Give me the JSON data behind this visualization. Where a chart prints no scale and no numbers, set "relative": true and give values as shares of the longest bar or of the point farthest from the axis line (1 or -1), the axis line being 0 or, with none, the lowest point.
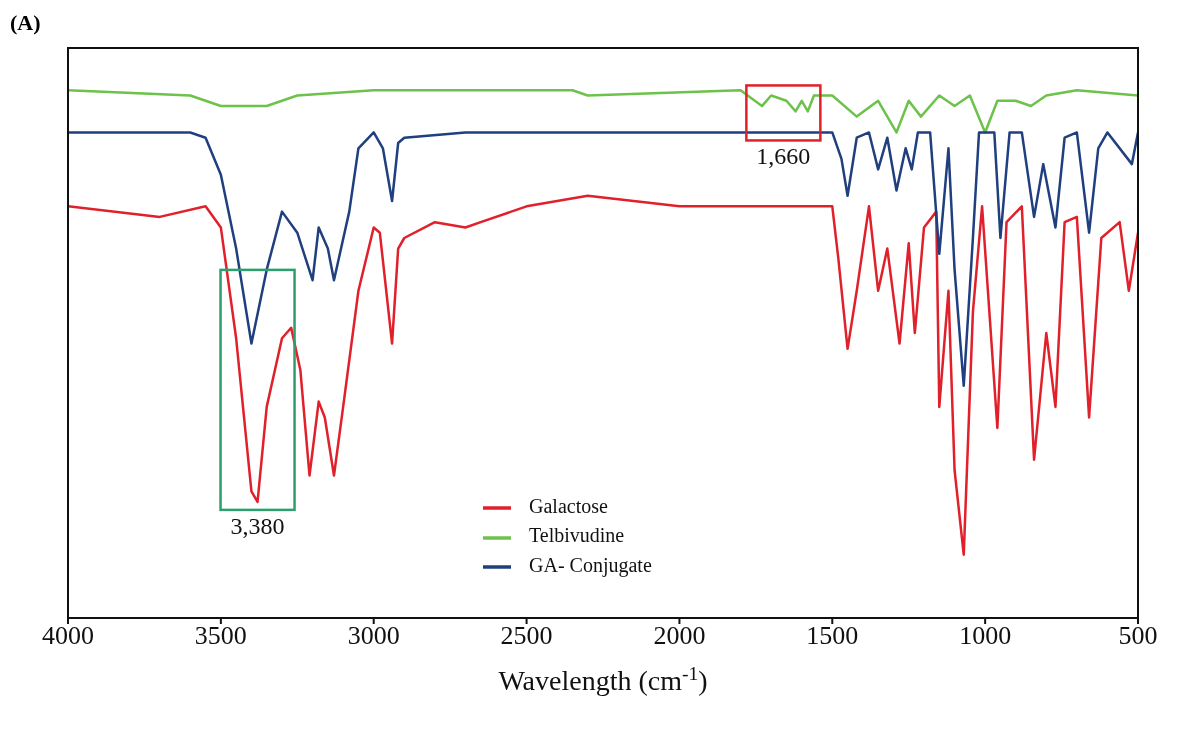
{
  "chart_data": {
    "type": "line",
    "relative": true,
    "xlabel": "Wavelength (cm$^{-1}$)",
    "xlim": [
      4000,
      500
    ],
    "xticks": [
      4000,
      3500,
      3000,
      2500,
      2000,
      1500,
      1000,
      500
    ],
    "legend": "bottom",
    "grid": false,
    "marker": "none",
    "annotations": [
      "(A)",
      {
        "text": "3,380",
        "x": 3380,
        "y": 0.22
      },
      {
        "text": "1,660",
        "x": 1660,
        "y": 0.92
      }
    ],
    "series": [
      {
        "name": "Galactose",
        "color": "#e0202a",
        "x": [
          4000,
          3700,
          3550,
          3500,
          3450,
          3400,
          3380,
          3350,
          3300,
          3270,
          3240,
          3210,
          3180,
          3160,
          3130,
          3100,
          3050,
          3000,
          2980,
          2940,
          2920,
          2900,
          2800,
          2700,
          2650,
          2500,
          2300,
          2000,
          1600,
          1500,
          1480,
          1450,
          1420,
          1380,
          1350,
          1320,
          1280,
          1250,
          1230,
          1200,
          1160,
          1150,
          1120,
          1100,
          1070,
          1040,
          1010,
          960,
          930,
          880,
          840,
          800,
          770,
          740,
          700,
          660,
          620,
          560,
          530,
          500
        ],
        "values": [
          0.78,
          0.76,
          0.78,
          0.74,
          0.53,
          0.24,
          0.22,
          0.4,
          0.53,
          0.55,
          0.47,
          0.27,
          0.41,
          0.38,
          0.27,
          0.4,
          0.62,
          0.74,
          0.73,
          0.52,
          0.7,
          0.72,
          0.75,
          0.74,
          0.75,
          0.78,
          0.8,
          0.78,
          0.78,
          0.78,
          0.68,
          0.51,
          0.62,
          0.78,
          0.62,
          0.7,
          0.52,
          0.71,
          0.54,
          0.74,
          0.77,
          0.4,
          0.62,
          0.28,
          0.12,
          0.58,
          0.78,
          0.36,
          0.75,
          0.78,
          0.3,
          0.54,
          0.4,
          0.75,
          0.76,
          0.38,
          0.72,
          0.75,
          0.62,
          0.73
        ]
      },
      {
        "name": "Telbivudine",
        "color": "#6cc24a",
        "x": [
          4000,
          3600,
          3500,
          3350,
          3250,
          3000,
          2400,
          2350,
          2300,
          1800,
          1730,
          1700,
          1650,
          1620,
          1600,
          1580,
          1560,
          1500,
          1420,
          1350,
          1290,
          1250,
          1210,
          1150,
          1100,
          1050,
          1000,
          960,
          900,
          850,
          800,
          700,
          500
        ],
        "values": [
          1.0,
          0.99,
          0.97,
          0.97,
          0.99,
          1.0,
          1.0,
          1.0,
          0.99,
          1.0,
          0.97,
          0.99,
          0.98,
          0.96,
          0.98,
          0.96,
          0.99,
          0.99,
          0.95,
          0.98,
          0.92,
          0.98,
          0.95,
          0.99,
          0.97,
          0.99,
          0.92,
          0.98,
          0.98,
          0.97,
          0.99,
          1.0,
          0.99
        ]
      },
      {
        "name": "GA- Conjugate",
        "color": "#1f3f7f",
        "x": [
          4000,
          3600,
          3550,
          3500,
          3450,
          3400,
          3350,
          3300,
          3250,
          3200,
          3180,
          3150,
          3130,
          3080,
          3050,
          3000,
          2970,
          2940,
          2920,
          2900,
          2700,
          2500,
          2000,
          1600,
          1500,
          1470,
          1450,
          1420,
          1380,
          1350,
          1320,
          1290,
          1260,
          1240,
          1220,
          1180,
          1150,
          1120,
          1100,
          1070,
          1040,
          1020,
          970,
          950,
          920,
          880,
          840,
          810,
          770,
          740,
          700,
          660,
          630,
          600,
          520,
          500
        ],
        "values": [
          0.92,
          0.92,
          0.91,
          0.84,
          0.7,
          0.52,
          0.66,
          0.77,
          0.73,
          0.64,
          0.74,
          0.7,
          0.64,
          0.77,
          0.89,
          0.92,
          0.89,
          0.79,
          0.9,
          0.91,
          0.92,
          0.92,
          0.92,
          0.92,
          0.92,
          0.87,
          0.8,
          0.91,
          0.92,
          0.85,
          0.91,
          0.81,
          0.89,
          0.85,
          0.92,
          0.92,
          0.69,
          0.89,
          0.66,
          0.44,
          0.72,
          0.92,
          0.92,
          0.72,
          0.92,
          0.92,
          0.76,
          0.86,
          0.74,
          0.91,
          0.92,
          0.73,
          0.89,
          0.92,
          0.86,
          0.92
        ]
      }
    ]
  }
}
